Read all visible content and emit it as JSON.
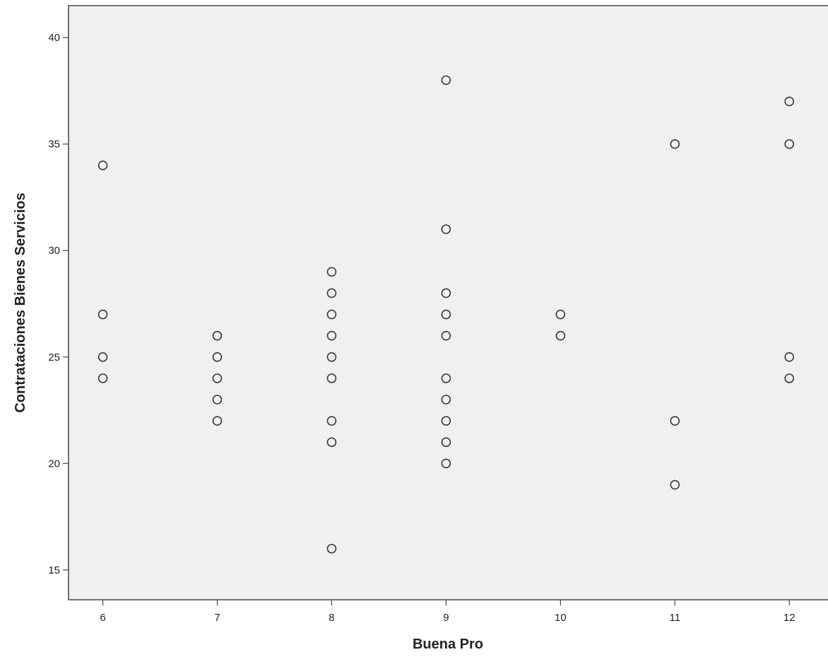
{
  "chart_data": {
    "type": "scatter",
    "title": "",
    "xlabel": "Buena Pro",
    "ylabel": "Contrataciones Bienes Servicios",
    "xlim": [
      5.7,
      12.4
    ],
    "ylim": [
      13.6,
      41.5
    ],
    "xticks": [
      6,
      7,
      8,
      9,
      10,
      11,
      12
    ],
    "yticks": [
      15,
      20,
      25,
      30,
      35,
      40
    ],
    "grid": false,
    "legend": "none",
    "marker": "hollow-circle",
    "colors": {
      "background": "#f0f0f0",
      "marker": "#3a3a3a",
      "axis": "#444444"
    },
    "points": [
      {
        "x": 6,
        "y": 34
      },
      {
        "x": 6,
        "y": 27
      },
      {
        "x": 6,
        "y": 25
      },
      {
        "x": 6,
        "y": 24
      },
      {
        "x": 7,
        "y": 26
      },
      {
        "x": 7,
        "y": 25
      },
      {
        "x": 7,
        "y": 24
      },
      {
        "x": 7,
        "y": 23
      },
      {
        "x": 7,
        "y": 22
      },
      {
        "x": 8,
        "y": 29
      },
      {
        "x": 8,
        "y": 28
      },
      {
        "x": 8,
        "y": 27
      },
      {
        "x": 8,
        "y": 26
      },
      {
        "x": 8,
        "y": 25
      },
      {
        "x": 8,
        "y": 24
      },
      {
        "x": 8,
        "y": 22
      },
      {
        "x": 8,
        "y": 21
      },
      {
        "x": 8,
        "y": 16
      },
      {
        "x": 9,
        "y": 38
      },
      {
        "x": 9,
        "y": 31
      },
      {
        "x": 9,
        "y": 28
      },
      {
        "x": 9,
        "y": 27
      },
      {
        "x": 9,
        "y": 26
      },
      {
        "x": 9,
        "y": 24
      },
      {
        "x": 9,
        "y": 23
      },
      {
        "x": 9,
        "y": 22
      },
      {
        "x": 9,
        "y": 21
      },
      {
        "x": 9,
        "y": 20
      },
      {
        "x": 10,
        "y": 27
      },
      {
        "x": 10,
        "y": 26
      },
      {
        "x": 11,
        "y": 35
      },
      {
        "x": 11,
        "y": 22
      },
      {
        "x": 11,
        "y": 19
      },
      {
        "x": 12,
        "y": 37
      },
      {
        "x": 12,
        "y": 35
      },
      {
        "x": 12,
        "y": 25
      },
      {
        "x": 12,
        "y": 24
      }
    ]
  }
}
